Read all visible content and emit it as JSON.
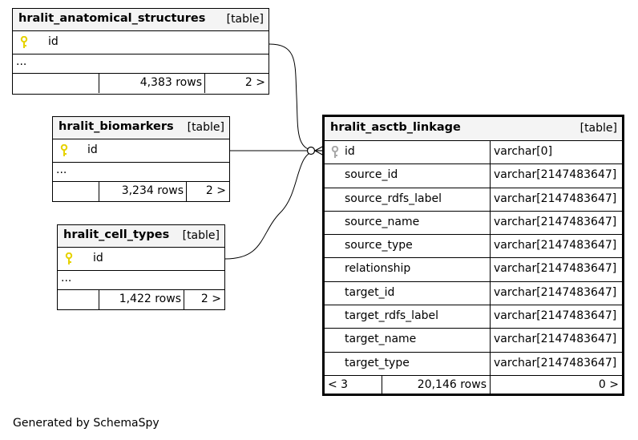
{
  "tables": {
    "anatomical": {
      "name": "hralit_anatomical_structures",
      "kind": "[table]",
      "pk": "id",
      "more": "...",
      "rows": "4,383 rows",
      "children": "2 >"
    },
    "biomarkers": {
      "name": "hralit_biomarkers",
      "kind": "[table]",
      "pk": "id",
      "more": "...",
      "rows": "3,234 rows",
      "children": "2 >"
    },
    "cell_types": {
      "name": "hralit_cell_types",
      "kind": "[table]",
      "pk": "id",
      "more": "...",
      "rows": "1,422 rows",
      "children": "2 >"
    },
    "linkage": {
      "name": "hralit_asctb_linkage",
      "kind": "[table]",
      "columns": [
        {
          "name": "id",
          "type": "varchar[0]"
        },
        {
          "name": "source_id",
          "type": "varchar[2147483647]"
        },
        {
          "name": "source_rdfs_label",
          "type": "varchar[2147483647]"
        },
        {
          "name": "source_name",
          "type": "varchar[2147483647]"
        },
        {
          "name": "source_type",
          "type": "varchar[2147483647]"
        },
        {
          "name": "relationship",
          "type": "varchar[2147483647]"
        },
        {
          "name": "target_id",
          "type": "varchar[2147483647]"
        },
        {
          "name": "target_rdfs_label",
          "type": "varchar[2147483647]"
        },
        {
          "name": "target_name",
          "type": "varchar[2147483647]"
        },
        {
          "name": "target_type",
          "type": "varchar[2147483647]"
        }
      ],
      "parents": "< 3",
      "rows": "20,146 rows",
      "children": "0 >"
    }
  },
  "footer": "Generated by SchemaSpy",
  "colors": {
    "key_yellow": "#e6d200",
    "key_gray": "#a8a8a8",
    "header_bg": "#f4f4f4"
  }
}
